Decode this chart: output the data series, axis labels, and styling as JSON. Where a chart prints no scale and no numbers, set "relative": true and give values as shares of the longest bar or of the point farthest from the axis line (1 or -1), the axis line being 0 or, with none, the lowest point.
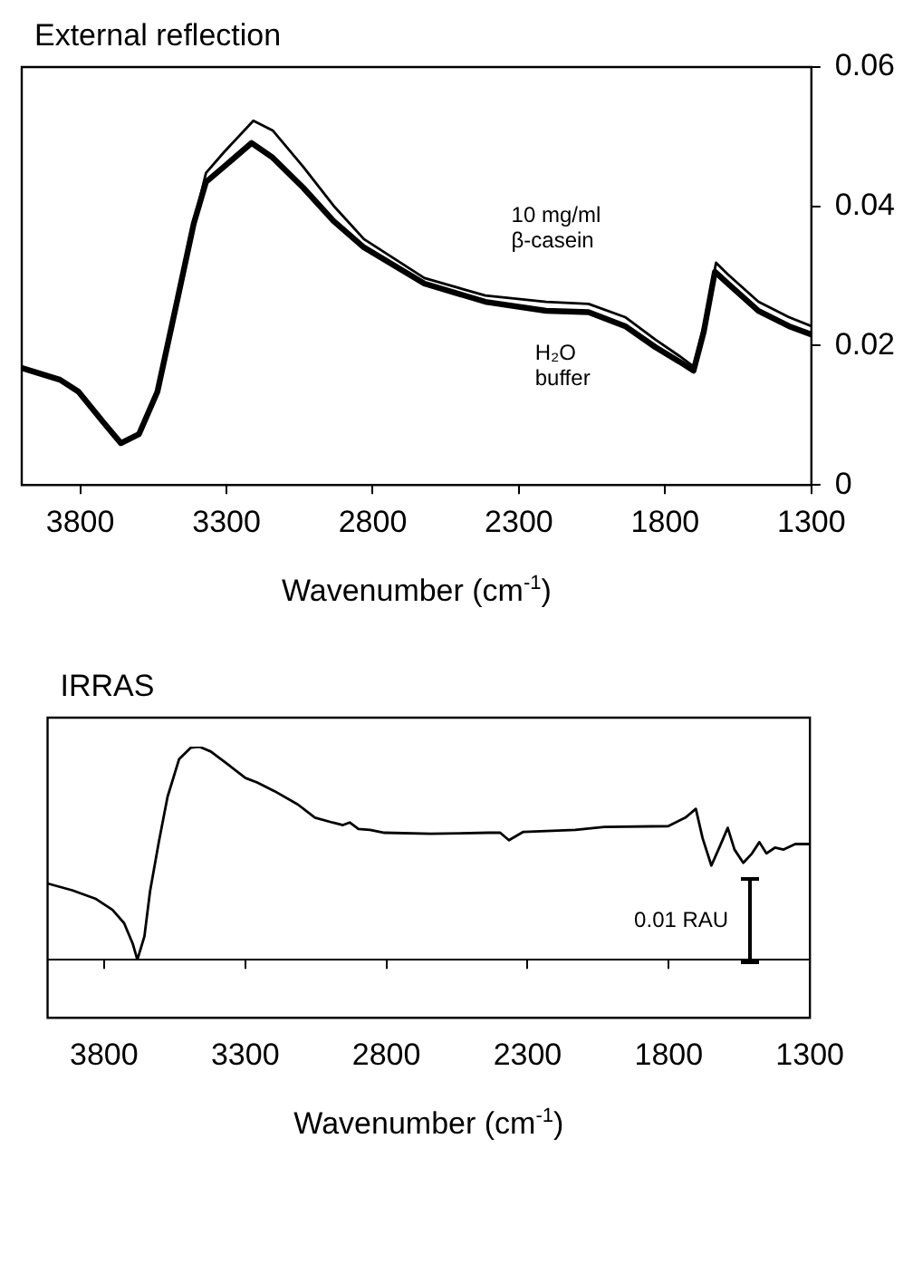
{
  "chart_data": [
    {
      "type": "line",
      "title": "External reflection",
      "xlabel": "Wavenumber (cm$^{-1}$)",
      "xlim": [
        4000,
        1300
      ],
      "xticks": [
        3800,
        3300,
        2800,
        2300,
        1800,
        1300
      ],
      "ylim": [
        0,
        0.06
      ],
      "yticks": [
        0,
        0.02,
        0.04,
        0.06
      ],
      "grid": false,
      "legend": false,
      "marker": "none",
      "line_style": "solid",
      "series": [
        {
          "name": "10 mg/ml β-casein",
          "color": "#000000",
          "x": [
            4000,
            3869,
            3806,
            3723,
            3661,
            3599,
            3536,
            3474,
            3412,
            3370,
            3308,
            3208,
            3142,
            3038,
            2934,
            2830,
            2623,
            2415,
            2207,
            2062,
            1937,
            1834,
            1751,
            1703,
            1668,
            1626,
            1585,
            1481,
            1377,
            1300
          ],
          "values": [
            0.0168,
            0.0151,
            0.0134,
            0.0091,
            0.006,
            0.0073,
            0.0134,
            0.0254,
            0.0375,
            0.0448,
            0.0478,
            0.0523,
            0.0509,
            0.0457,
            0.0401,
            0.0353,
            0.0297,
            0.0272,
            0.0263,
            0.026,
            0.0241,
            0.0209,
            0.0185,
            0.017,
            0.0228,
            0.0319,
            0.0302,
            0.0263,
            0.0241,
            0.0228
          ]
        },
        {
          "name": "H₂O buffer",
          "color": "#000000",
          "x": [
            4000,
            3869,
            3806,
            3723,
            3661,
            3599,
            3536,
            3474,
            3412,
            3370,
            3308,
            3214,
            3142,
            3038,
            2934,
            2830,
            2623,
            2415,
            2207,
            2062,
            1937,
            1834,
            1751,
            1703,
            1668,
            1630,
            1585,
            1481,
            1377,
            1300
          ],
          "values": [
            0.0168,
            0.0151,
            0.0134,
            0.0091,
            0.006,
            0.0073,
            0.0134,
            0.0254,
            0.0375,
            0.0435,
            0.0457,
            0.0491,
            0.047,
            0.0427,
            0.0379,
            0.0341,
            0.0289,
            0.0263,
            0.025,
            0.0248,
            0.0228,
            0.0198,
            0.0177,
            0.0164,
            0.022,
            0.0306,
            0.0289,
            0.025,
            0.0228,
            0.0216
          ]
        }
      ]
    },
    {
      "type": "line",
      "title": "IRRAS",
      "xlabel": "Wavenumber (cm$^{-1}$)",
      "xlim": [
        4000,
        1300
      ],
      "xticks": [
        3800,
        3300,
        2800,
        2300,
        1800,
        1300
      ],
      "relative": true,
      "grid": false,
      "legend": false,
      "marker": "none",
      "line_style": "solid",
      "annotations": [
        "0.01 RAU"
      ],
      "series": [
        {
          "color": "#000000",
          "x": [
            4000,
            3913,
            3831,
            3770,
            3729,
            3698,
            3682,
            3657,
            3637,
            3606,
            3575,
            3534,
            3493,
            3463,
            3422,
            3360,
            3299,
            3258,
            3196,
            3114,
            3053,
            2991,
            2954,
            2930,
            2899,
            2858,
            2807,
            2643,
            2438,
            2397,
            2366,
            2315,
            2131,
            2029,
            1802,
            1741,
            1704,
            1680,
            1649,
            1618,
            1591,
            1567,
            1536,
            1505,
            1479,
            1454,
            1424,
            1393,
            1352,
            1300
          ],
          "values": [
            0.358,
            0.326,
            0.287,
            0.234,
            0.172,
            0.074,
            0,
            0.11,
            0.322,
            0.552,
            0.765,
            0.942,
            0.995,
            1,
            0.977,
            0.915,
            0.853,
            0.832,
            0.791,
            0.729,
            0.667,
            0.644,
            0.632,
            0.644,
            0.614,
            0.609,
            0.596,
            0.591,
            0.596,
            0.596,
            0.561,
            0.6,
            0.609,
            0.623,
            0.627,
            0.667,
            0.708,
            0.57,
            0.442,
            0.535,
            0.619,
            0.517,
            0.455,
            0.499,
            0.552,
            0.499,
            0.526,
            0.517,
            0.543,
            0.543
          ]
        }
      ]
    }
  ]
}
